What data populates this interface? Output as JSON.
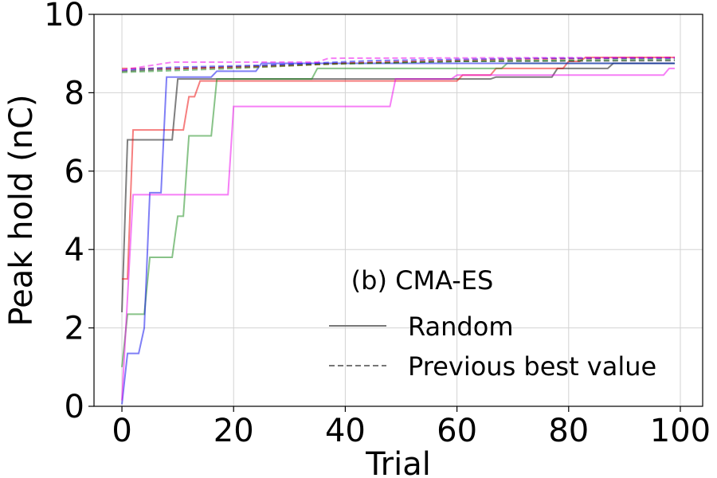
{
  "chart_data": {
    "type": "line",
    "xlabel": "Trial",
    "ylabel": "Peak hold (nC)",
    "xlim": [
      -5,
      104
    ],
    "ylim": [
      0,
      10
    ],
    "xticks": [
      0,
      20,
      40,
      60,
      80,
      100
    ],
    "yticks": [
      0,
      2,
      4,
      6,
      8,
      10
    ],
    "xtick_labels": [
      "0",
      "20",
      "40",
      "60",
      "80",
      "100"
    ],
    "ytick_labels": [
      "0",
      "2",
      "4",
      "6",
      "8",
      "10"
    ],
    "grid": true,
    "legend": {
      "title": "(b) CMA-ES",
      "placement": "bottom-right",
      "entries": [
        {
          "label": "Random",
          "style": "solid",
          "color": "#777777"
        },
        {
          "label": "Previous best value",
          "style": "dashed",
          "color": "#777777"
        }
      ]
    },
    "series": [
      {
        "color": "#000000",
        "style": "solid",
        "points": [
          [
            0,
            2.4
          ],
          [
            1,
            6.8
          ],
          [
            9,
            6.8
          ],
          [
            10,
            8.35
          ],
          [
            66,
            8.35
          ],
          [
            67,
            8.4
          ],
          [
            77,
            8.4
          ],
          [
            78,
            8.62
          ],
          [
            87,
            8.62
          ],
          [
            88,
            8.75
          ],
          [
            99,
            8.75
          ]
        ]
      },
      {
        "color": "#ee0000",
        "style": "solid",
        "points": [
          [
            0,
            3.25
          ],
          [
            1,
            3.25
          ],
          [
            2,
            7.05
          ],
          [
            11,
            7.05
          ],
          [
            12,
            7.9
          ],
          [
            13,
            7.9
          ],
          [
            14,
            8.3
          ],
          [
            60,
            8.3
          ],
          [
            61,
            8.45
          ],
          [
            66,
            8.45
          ],
          [
            67,
            8.62
          ],
          [
            79,
            8.62
          ],
          [
            80,
            8.8
          ],
          [
            82,
            8.8
          ],
          [
            83,
            8.9
          ],
          [
            99,
            8.9
          ]
        ]
      },
      {
        "color": "#118811",
        "style": "solid",
        "points": [
          [
            0,
            1.0
          ],
          [
            1,
            2.35
          ],
          [
            4,
            2.35
          ],
          [
            5,
            3.8
          ],
          [
            9,
            3.8
          ],
          [
            10,
            4.85
          ],
          [
            11,
            4.85
          ],
          [
            12,
            6.9
          ],
          [
            16,
            6.9
          ],
          [
            17,
            8.35
          ],
          [
            34,
            8.35
          ],
          [
            35,
            8.62
          ],
          [
            68,
            8.62
          ],
          [
            69,
            8.75
          ],
          [
            99,
            8.75
          ]
        ]
      },
      {
        "color": "#0000ee",
        "style": "solid",
        "points": [
          [
            0,
            0.05
          ],
          [
            1,
            1.35
          ],
          [
            3,
            1.35
          ],
          [
            4,
            2.0
          ],
          [
            5,
            5.45
          ],
          [
            7,
            5.45
          ],
          [
            8,
            8.4
          ],
          [
            16,
            8.4
          ],
          [
            17,
            8.55
          ],
          [
            24,
            8.55
          ],
          [
            25,
            8.75
          ],
          [
            99,
            8.75
          ]
        ]
      },
      {
        "color": "#ee00ee",
        "style": "solid",
        "points": [
          [
            0,
            0.15
          ],
          [
            2,
            5.4
          ],
          [
            19,
            5.4
          ],
          [
            20,
            7.65
          ],
          [
            48,
            7.65
          ],
          [
            49,
            8.35
          ],
          [
            59,
            8.35
          ],
          [
            60,
            8.45
          ],
          [
            97,
            8.45
          ],
          [
            98,
            8.62
          ],
          [
            99,
            8.62
          ]
        ]
      },
      {
        "color": "#000000",
        "style": "dashed",
        "points": [
          [
            0,
            8.55
          ],
          [
            8,
            8.6
          ],
          [
            18,
            8.65
          ],
          [
            40,
            8.75
          ],
          [
            60,
            8.8
          ],
          [
            99,
            8.82
          ]
        ]
      },
      {
        "color": "#ee0000",
        "style": "dashed",
        "points": [
          [
            0,
            8.62
          ],
          [
            10,
            8.62
          ],
          [
            25,
            8.66
          ],
          [
            45,
            8.78
          ],
          [
            70,
            8.85
          ],
          [
            99,
            8.9
          ]
        ]
      },
      {
        "color": "#118811",
        "style": "dashed",
        "points": [
          [
            0,
            8.52
          ],
          [
            8,
            8.56
          ],
          [
            20,
            8.62
          ],
          [
            35,
            8.72
          ],
          [
            60,
            8.8
          ],
          [
            99,
            8.85
          ]
        ]
      },
      {
        "color": "#0000ee",
        "style": "dashed",
        "points": [
          [
            0,
            8.58
          ],
          [
            9,
            8.65
          ],
          [
            25,
            8.7
          ],
          [
            45,
            8.82
          ],
          [
            75,
            8.88
          ],
          [
            99,
            8.88
          ]
        ]
      },
      {
        "color": "#ee00ee",
        "style": "dashed",
        "points": [
          [
            0,
            8.58
          ],
          [
            9,
            8.78
          ],
          [
            35,
            8.78
          ],
          [
            37,
            8.88
          ],
          [
            99,
            8.9
          ]
        ]
      }
    ]
  }
}
